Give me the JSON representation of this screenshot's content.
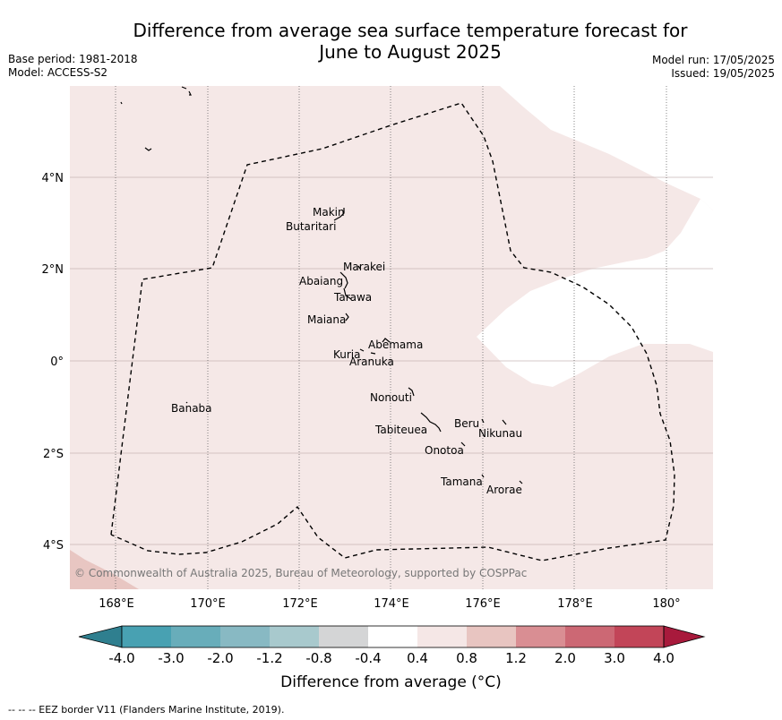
{
  "title_line1": "Difference from average sea surface temperature forecast for",
  "title_line2": "June to August 2025",
  "meta_left": {
    "base_period": "Base period: 1981-2018",
    "model": "Model: ACCESS-S2"
  },
  "meta_right": {
    "model_run": "Model run: 17/05/2025",
    "issued": "Issued: 19/05/2025"
  },
  "copyright": "© Commonwealth of Australia 2025, Bureau of Meteorology, supported by COSPPac",
  "lat_labels": [
    "4°N",
    "2°N",
    "0°",
    "2°S",
    "4°S"
  ],
  "lon_labels": [
    "168°E",
    "170°E",
    "172°E",
    "174°E",
    "176°E",
    "178°E",
    "180°"
  ],
  "islands": [
    "Makin",
    "Butaritari",
    "Marakei",
    "Abaiang",
    "Tarawa",
    "Maiana",
    "Abemama",
    "Kuria",
    "Aranuka",
    "Nonouti",
    "Banaba",
    "Beru",
    "Tabiteuea",
    "Nikunau",
    "Onotoa",
    "Tamana",
    "Arorae"
  ],
  "colorbar": {
    "ticks": [
      "-4.0",
      "-3.0",
      "-2.0",
      "-1.2",
      "-0.8",
      "-0.4",
      "0.4",
      "0.8",
      "1.2",
      "2.0",
      "3.0",
      "4.0"
    ],
    "colors": [
      "#2f7f8f",
      "#48a1b2",
      "#68adba",
      "#88b9c3",
      "#a8c9cd",
      "#d4d5d6",
      "#ffffff",
      "#f5e7e6",
      "#e8c5c1",
      "#d98e93",
      "#cc6874",
      "#c24558",
      "#a81a3c"
    ],
    "label": "Difference from average (°C)"
  },
  "footer": "--  --  -- EEZ border V11 (Flanders Marine Institute, 2019)."
}
